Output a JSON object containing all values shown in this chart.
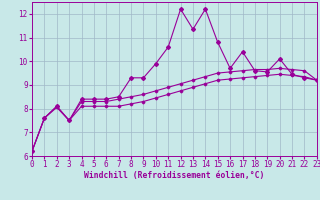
{
  "xlabel": "Windchill (Refroidissement éolien,°C)",
  "background_color": "#c8e8e8",
  "grid_color": "#a0b8c8",
  "line_color": "#990099",
  "xmin": 0,
  "xmax": 23,
  "ymin": 6,
  "ymax": 12.5,
  "x_ticks": [
    0,
    1,
    2,
    3,
    4,
    5,
    6,
    7,
    8,
    9,
    10,
    11,
    12,
    13,
    14,
    15,
    16,
    17,
    18,
    19,
    20,
    21,
    22,
    23
  ],
  "y_ticks": [
    6,
    7,
    8,
    9,
    10,
    11,
    12
  ],
  "series1_x": [
    0,
    1,
    2,
    3,
    4,
    5,
    6,
    7,
    8,
    9,
    10,
    11,
    12,
    13,
    14,
    15,
    16,
    17,
    18,
    19,
    20,
    21,
    22,
    23
  ],
  "series1_y": [
    6.2,
    7.6,
    8.1,
    7.5,
    8.4,
    8.4,
    8.4,
    8.5,
    9.3,
    9.3,
    9.9,
    10.6,
    12.2,
    11.35,
    12.2,
    10.8,
    9.7,
    10.4,
    9.6,
    9.55,
    10.1,
    9.45,
    9.3,
    9.2
  ],
  "series2_x": [
    0,
    1,
    2,
    3,
    4,
    5,
    6,
    7,
    8,
    9,
    10,
    11,
    12,
    13,
    14,
    15,
    16,
    17,
    18,
    19,
    20,
    21,
    22,
    23
  ],
  "series2_y": [
    6.2,
    7.6,
    8.1,
    7.5,
    8.3,
    8.3,
    8.3,
    8.4,
    8.5,
    8.6,
    8.75,
    8.9,
    9.05,
    9.2,
    9.35,
    9.5,
    9.55,
    9.6,
    9.65,
    9.65,
    9.7,
    9.65,
    9.6,
    9.2
  ],
  "series3_x": [
    0,
    1,
    2,
    3,
    4,
    5,
    6,
    7,
    8,
    9,
    10,
    11,
    12,
    13,
    14,
    15,
    16,
    17,
    18,
    19,
    20,
    21,
    22,
    23
  ],
  "series3_y": [
    6.2,
    7.6,
    8.05,
    7.5,
    8.1,
    8.1,
    8.1,
    8.1,
    8.2,
    8.3,
    8.45,
    8.6,
    8.75,
    8.9,
    9.05,
    9.2,
    9.25,
    9.3,
    9.35,
    9.4,
    9.45,
    9.4,
    9.35,
    9.2
  ],
  "tick_fontsize": 5.5,
  "xlabel_fontsize": 5.8,
  "marker_size": 2.0,
  "line_width": 0.8
}
